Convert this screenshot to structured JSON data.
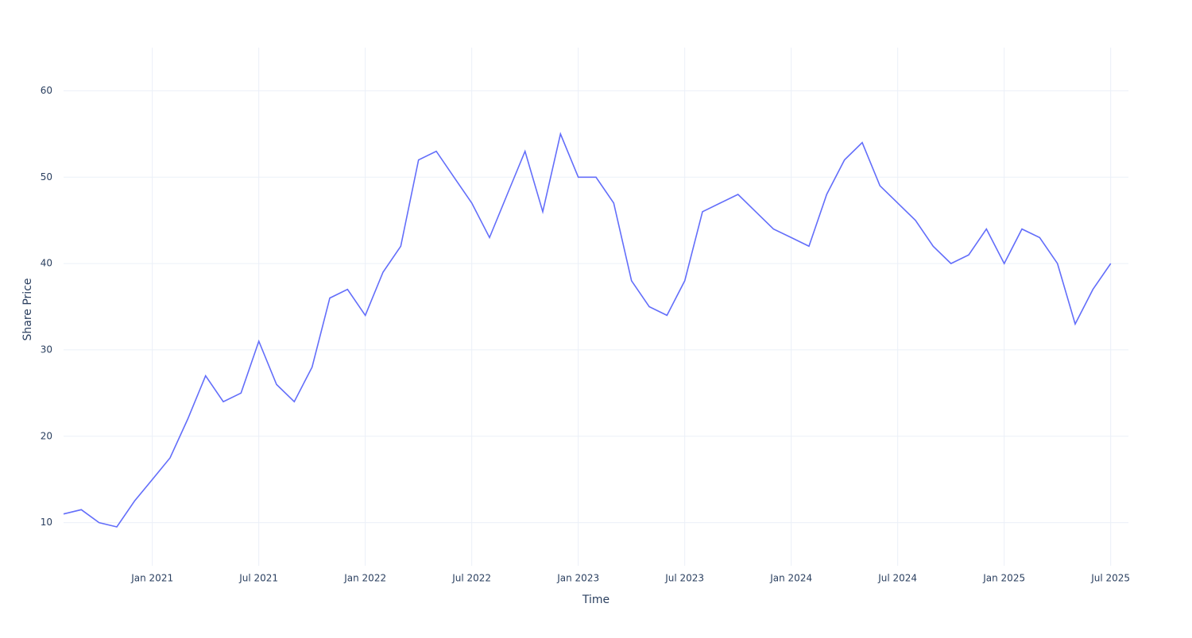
{
  "chart_data": {
    "type": "line",
    "x_label": "Time",
    "y_label": "Share Price",
    "x": [
      "2020-08",
      "2020-09",
      "2020-10",
      "2020-11",
      "2020-12",
      "2021-01",
      "2021-02",
      "2021-03",
      "2021-04",
      "2021-05",
      "2021-06",
      "2021-07",
      "2021-08",
      "2021-09",
      "2021-10",
      "2021-11",
      "2021-12",
      "2022-01",
      "2022-02",
      "2022-03",
      "2022-04",
      "2022-05",
      "2022-06",
      "2022-07",
      "2022-08",
      "2022-09",
      "2022-10",
      "2022-11",
      "2022-12",
      "2023-01",
      "2023-02",
      "2023-03",
      "2023-04",
      "2023-05",
      "2023-06",
      "2023-07",
      "2023-08",
      "2023-09",
      "2023-10",
      "2023-11",
      "2023-12",
      "2024-01",
      "2024-02",
      "2024-03",
      "2024-04",
      "2024-05",
      "2024-06",
      "2024-07",
      "2024-08",
      "2024-09",
      "2024-10",
      "2024-11",
      "2024-12",
      "2025-01",
      "2025-02",
      "2025-03",
      "2025-04",
      "2025-05",
      "2025-06",
      "2025-07"
    ],
    "series": [
      {
        "name": "Share Price",
        "color": "#636efa",
        "values": [
          11,
          11.5,
          10,
          9.5,
          12.5,
          15,
          17.5,
          22,
          27,
          24,
          25,
          31,
          26,
          24,
          28,
          36,
          37,
          34,
          39,
          42,
          52,
          53,
          50,
          47,
          43,
          48,
          53,
          46,
          55,
          50,
          50,
          47,
          38,
          35,
          34,
          38,
          46,
          47,
          48,
          46,
          44,
          43,
          42,
          48,
          52,
          54,
          49,
          47,
          45,
          42,
          40,
          41,
          44,
          40,
          44,
          43,
          40,
          33,
          37,
          40
        ]
      }
    ],
    "xlim": [
      "2020-08",
      "2025-08"
    ],
    "xticks": [
      {
        "value": "2021-01",
        "label": "Jan 2021"
      },
      {
        "value": "2021-07",
        "label": "Jul 2021"
      },
      {
        "value": "2022-01",
        "label": "Jan 2022"
      },
      {
        "value": "2022-07",
        "label": "Jul 2022"
      },
      {
        "value": "2023-01",
        "label": "Jan 2023"
      },
      {
        "value": "2023-07",
        "label": "Jul 2023"
      },
      {
        "value": "2024-01",
        "label": "Jan 2024"
      },
      {
        "value": "2024-07",
        "label": "Jul 2024"
      },
      {
        "value": "2025-01",
        "label": "Jan 2025"
      },
      {
        "value": "2025-07",
        "label": "Jul 2025"
      }
    ],
    "ylim": [
      5,
      65
    ],
    "yticks": [
      10,
      20,
      30,
      40,
      50,
      60
    ],
    "grid": true
  }
}
